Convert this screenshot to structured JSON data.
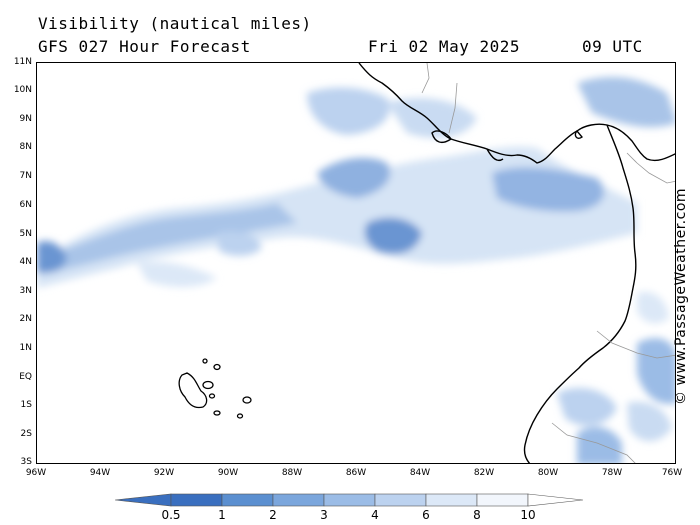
{
  "header": {
    "title": "Visibility (nautical miles)",
    "forecast": "GFS 027 Hour Forecast",
    "date": "Fri 02 May 2025",
    "time": "09 UTC"
  },
  "map": {
    "lat_labels": [
      "11N",
      "10N",
      "9N",
      "8N",
      "7N",
      "6N",
      "5N",
      "4N",
      "3N",
      "2N",
      "1N",
      "EQ",
      "1S",
      "2S",
      "3S"
    ],
    "lon_labels": [
      "96W",
      "94W",
      "92W",
      "90W",
      "88W",
      "86W",
      "84W",
      "82W",
      "80W",
      "78W",
      "76W"
    ],
    "lon_range": [
      -96,
      -76
    ],
    "lat_range": [
      -3,
      11
    ]
  },
  "watermark": "© www.PassageWeather.com",
  "colorbar": {
    "labels": [
      "0.5",
      "1",
      "2",
      "3",
      "4",
      "6",
      "8",
      "10"
    ],
    "colors": [
      "#3a6fbf",
      "#5b8fd0",
      "#7ba6dc",
      "#9bbce6",
      "#bcd2ef",
      "#dce8f7",
      "#f2f6fc"
    ]
  }
}
